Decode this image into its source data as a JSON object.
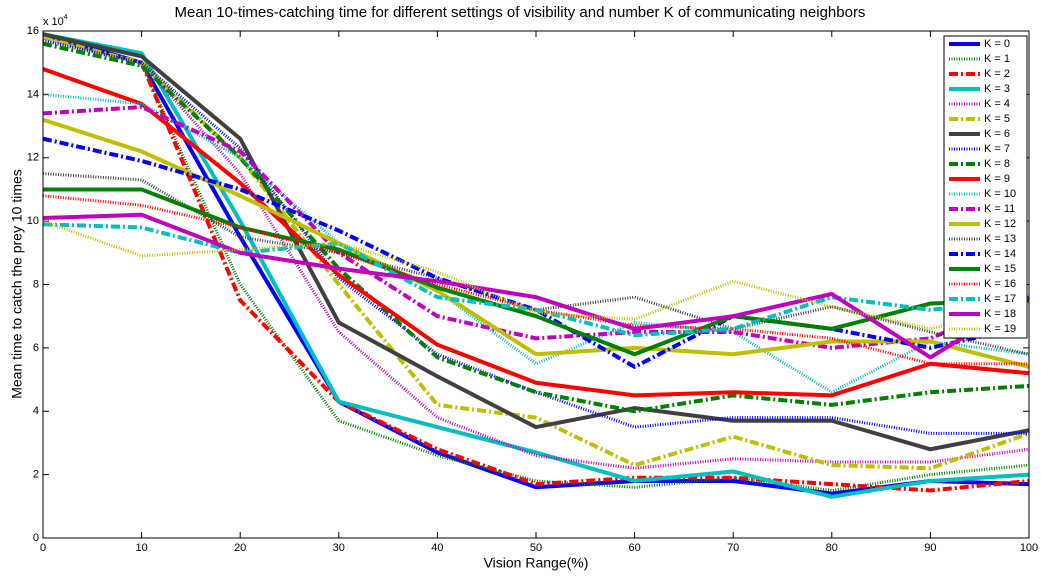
{
  "chart_data": {
    "type": "line",
    "title": "Mean 10-times-catching time for different settings of visibility and number K of communicating neighbors",
    "x_label": "Vision Range(%)",
    "y_label": "Mean time to catch the prey 10 times",
    "y_multiplier": {
      "base": "x 10",
      "exponent": "4"
    },
    "x": [
      0,
      10,
      20,
      30,
      40,
      50,
      60,
      70,
      80,
      90,
      100
    ],
    "xlim": [
      0,
      100
    ],
    "xticks": [
      0,
      10,
      20,
      30,
      40,
      50,
      60,
      70,
      80,
      90,
      100
    ],
    "ylim": [
      0,
      16
    ],
    "yticks": [
      0,
      2,
      4,
      6,
      8,
      10,
      12,
      14,
      16
    ],
    "legend": "northeast",
    "series": [
      {
        "name": "K = 0",
        "color": "#0000ff",
        "style": "solid",
        "values": [
          15.9,
          15.0,
          9.5,
          4.3,
          2.7,
          1.6,
          1.8,
          1.8,
          1.4,
          1.8,
          1.7
        ]
      },
      {
        "name": "K = 1",
        "color": "#008000",
        "style": "dotted",
        "values": [
          15.8,
          15.0,
          8.0,
          3.7,
          2.6,
          1.8,
          1.6,
          1.9,
          1.5,
          2.0,
          2.3
        ]
      },
      {
        "name": "K = 2",
        "color": "#ff0000",
        "style": "dashdot",
        "values": [
          15.8,
          15.0,
          7.5,
          4.3,
          2.8,
          1.7,
          1.9,
          1.9,
          1.7,
          1.5,
          1.8
        ]
      },
      {
        "name": "K = 3",
        "color": "#00bfbf",
        "style": "solid",
        "values": [
          15.9,
          15.3,
          10.0,
          4.3,
          3.5,
          2.7,
          1.8,
          2.1,
          1.3,
          1.8,
          2.0
        ]
      },
      {
        "name": "K = 4",
        "color": "#bf00bf",
        "style": "dotted",
        "values": [
          15.7,
          15.0,
          11.5,
          6.5,
          3.8,
          2.6,
          2.2,
          2.5,
          2.4,
          2.4,
          2.8
        ]
      },
      {
        "name": "K = 5",
        "color": "#bfbf00",
        "style": "dashdot",
        "values": [
          15.8,
          15.0,
          12.0,
          8.0,
          4.2,
          3.8,
          2.3,
          3.2,
          2.3,
          2.2,
          3.3
        ]
      },
      {
        "name": "K = 6",
        "color": "#404040",
        "style": "solid",
        "values": [
          15.9,
          15.2,
          12.6,
          6.8,
          5.1,
          3.5,
          4.1,
          3.7,
          3.7,
          2.8,
          3.4
        ]
      },
      {
        "name": "K = 7",
        "color": "#0000ff",
        "style": "dotted",
        "values": [
          15.7,
          15.0,
          12.3,
          8.2,
          5.8,
          4.6,
          3.5,
          3.8,
          3.8,
          3.3,
          3.3
        ]
      },
      {
        "name": "K = 8",
        "color": "#008000",
        "style": "dashdot",
        "values": [
          15.6,
          14.9,
          12.0,
          8.5,
          5.7,
          4.6,
          4.0,
          4.5,
          4.2,
          4.6,
          4.8
        ]
      },
      {
        "name": "K = 9",
        "color": "#ff0000",
        "style": "solid",
        "values": [
          14.8,
          13.7,
          11.2,
          8.3,
          6.1,
          4.9,
          4.5,
          4.6,
          4.5,
          5.5,
          5.2
        ]
      },
      {
        "name": "K = 10",
        "color": "#00bfbf",
        "style": "dotted",
        "values": [
          14.0,
          13.7,
          12.0,
          9.3,
          7.8,
          5.5,
          6.8,
          6.5,
          4.6,
          6.2,
          5.8
        ]
      },
      {
        "name": "K = 11",
        "color": "#bf00bf",
        "style": "dashdot",
        "values": [
          13.4,
          13.6,
          12.2,
          9.0,
          7.0,
          6.3,
          6.5,
          6.5,
          6.0,
          6.3,
          7.6
        ]
      },
      {
        "name": "K = 12",
        "color": "#bfbf00",
        "style": "solid",
        "values": [
          13.2,
          12.2,
          10.8,
          9.3,
          7.8,
          5.8,
          6.0,
          5.8,
          6.2,
          6.2,
          5.4
        ]
      },
      {
        "name": "K = 13",
        "color": "#404040",
        "style": "dotted",
        "values": [
          11.5,
          11.3,
          9.5,
          9.0,
          8.2,
          7.2,
          7.6,
          6.6,
          7.3,
          6.5,
          5.8
        ]
      },
      {
        "name": "K = 14",
        "color": "#0000ff",
        "style": "dashdot",
        "values": [
          12.6,
          11.9,
          11.0,
          9.7,
          8.2,
          7.2,
          5.4,
          7.0,
          6.6,
          6.0,
          6.7
        ]
      },
      {
        "name": "K = 15",
        "color": "#008000",
        "style": "solid",
        "values": [
          11.0,
          11.0,
          9.8,
          9.1,
          7.9,
          7.0,
          5.8,
          7.0,
          6.6,
          7.4,
          7.5
        ]
      },
      {
        "name": "K = 16",
        "color": "#ff0000",
        "style": "dotted",
        "values": [
          10.8,
          10.5,
          9.8,
          9.0,
          8.0,
          7.2,
          6.7,
          6.6,
          6.3,
          5.5,
          5.5
        ]
      },
      {
        "name": "K = 17",
        "color": "#00bfbf",
        "style": "dashdot",
        "values": [
          9.9,
          9.8,
          9.0,
          9.3,
          7.6,
          7.2,
          6.4,
          6.6,
          7.6,
          7.2,
          7.5
        ]
      },
      {
        "name": "K = 18",
        "color": "#bf00bf",
        "style": "solid",
        "values": [
          10.1,
          10.2,
          9.0,
          8.5,
          8.1,
          7.6,
          6.6,
          7.0,
          7.7,
          5.7,
          7.6
        ]
      },
      {
        "name": "K = 19",
        "color": "#bfbf00",
        "style": "dotted",
        "values": [
          10.0,
          8.9,
          9.1,
          9.3,
          8.4,
          7.1,
          6.9,
          8.1,
          7.3,
          6.6,
          7.4
        ]
      }
    ]
  }
}
